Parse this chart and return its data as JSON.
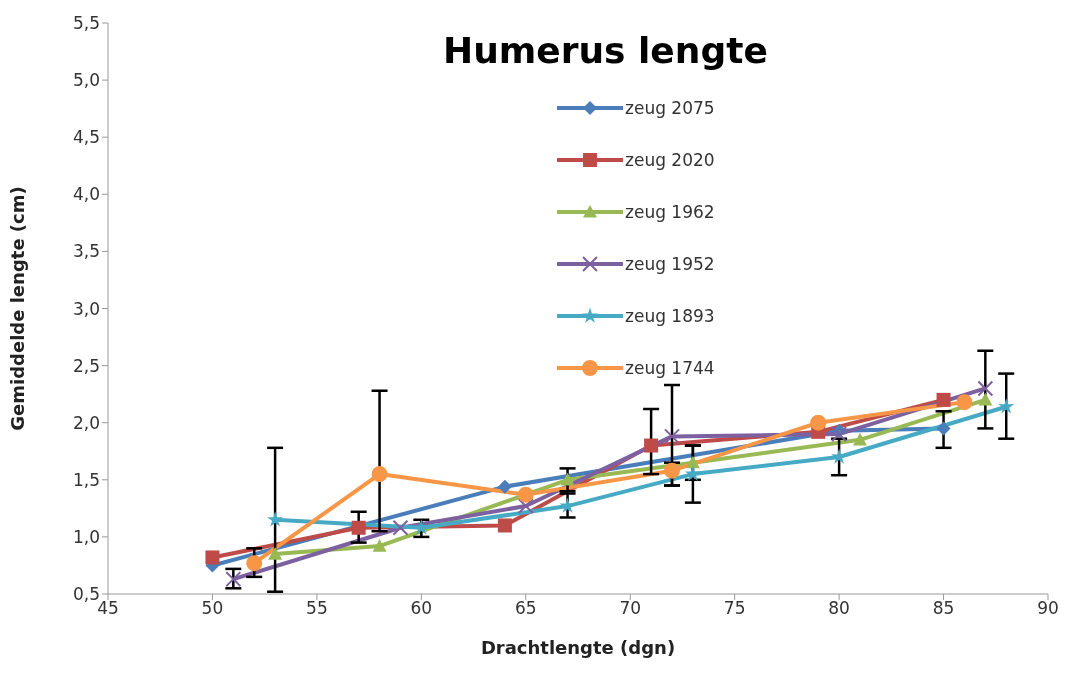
{
  "chart_data": {
    "type": "line",
    "title": "Humerus lengte",
    "xlabel": "Drachtlengte (dgn)",
    "ylabel": "Gemiddelde lengte (cm)",
    "xlim": [
      45,
      90
    ],
    "xticks": [
      45,
      50,
      55,
      60,
      65,
      70,
      75,
      80,
      85,
      90
    ],
    "ylim": [
      0.5,
      5.5
    ],
    "yticks": [
      {
        "value": 0.5,
        "label": "0,5"
      },
      {
        "value": 1,
        "label": "1,0"
      },
      {
        "value": 1.5,
        "label": "1,5"
      },
      {
        "value": 2,
        "label": "2,0"
      },
      {
        "value": 2.5,
        "label": "2,5"
      },
      {
        "value": 3,
        "label": "3,0"
      },
      {
        "value": 3.5,
        "label": "3,5"
      },
      {
        "value": 4,
        "label": "4,0"
      },
      {
        "value": 4.5,
        "label": "4,5"
      },
      {
        "value": 5,
        "label": "5,0"
      },
      {
        "value": 5.5,
        "label": "5,5"
      }
    ],
    "grid": false,
    "legend": "top",
    "line_style": "solid",
    "series": [
      {
        "name": "zeug 2075",
        "color": "#4a7ebb",
        "marker": "diamond",
        "x": [
          50,
          64,
          80,
          85
        ],
        "values": [
          0.75,
          1.44,
          1.93,
          1.95
        ],
        "errors": [
          null,
          null,
          null,
          [
            1.78,
            2.1
          ]
        ]
      },
      {
        "name": "zeug 2020",
        "color": "#be4b48",
        "marker": "square",
        "x": [
          50,
          57,
          64,
          71,
          79,
          85
        ],
        "values": [
          0.82,
          1.08,
          1.1,
          1.8,
          1.92,
          2.2
        ],
        "errors": [
          null,
          [
            0.95,
            1.22
          ],
          null,
          [
            1.55,
            2.12
          ],
          null,
          null
        ]
      },
      {
        "name": "zeug 1962",
        "color": "#98b954",
        "marker": "triangle",
        "x": [
          53,
          58,
          67,
          73,
          81,
          87
        ],
        "values": [
          0.85,
          0.92,
          1.5,
          1.65,
          1.85,
          2.2
        ],
        "errors": [
          null,
          null,
          [
            1.4,
            1.6
          ],
          [
            1.5,
            1.8
          ],
          null,
          null
        ]
      },
      {
        "name": "zeug 1952",
        "color": "#7d60a0",
        "marker": "cross",
        "x": [
          51,
          59,
          65,
          72,
          80,
          87
        ],
        "values": [
          0.63,
          1.08,
          1.27,
          1.88,
          1.9,
          2.3
        ],
        "errors": [
          [
            0.55,
            0.72
          ],
          null,
          null,
          [
            1.45,
            2.33
          ],
          null,
          [
            1.95,
            2.63
          ]
        ]
      },
      {
        "name": "zeug 1893",
        "color": "#46aac5",
        "marker": "star",
        "x": [
          53,
          60,
          67,
          73,
          80,
          88
        ],
        "values": [
          1.15,
          1.08,
          1.27,
          1.55,
          1.7,
          2.14
        ],
        "errors": [
          [
            0.52,
            1.78
          ],
          [
            1.0,
            1.15
          ],
          [
            1.17,
            1.38
          ],
          [
            1.3,
            1.8
          ],
          [
            1.54,
            1.86
          ],
          [
            1.86,
            2.43
          ]
        ]
      },
      {
        "name": "zeug 1744",
        "color": "#f79646",
        "marker": "circle",
        "x": [
          52,
          58,
          65,
          72,
          79,
          86
        ],
        "values": [
          0.77,
          1.55,
          1.37,
          1.58,
          2.0,
          2.18
        ],
        "errors": [
          [
            0.65,
            0.9
          ],
          [
            1.05,
            2.28
          ],
          null,
          [
            1.45,
            1.65
          ],
          null,
          null
        ]
      }
    ]
  }
}
